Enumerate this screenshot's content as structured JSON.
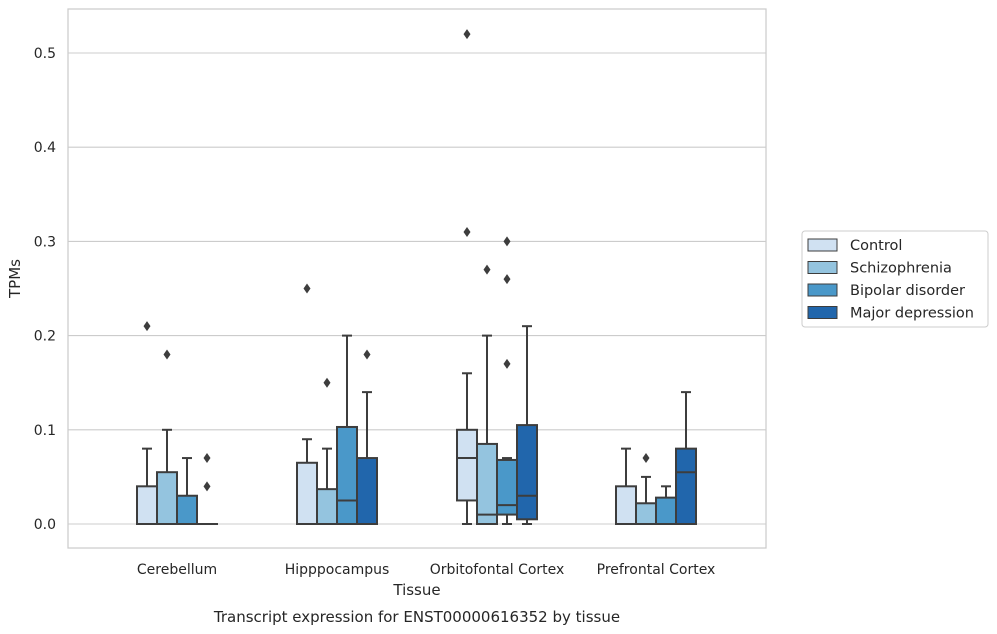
{
  "chart_data": {
    "type": "boxplot",
    "caption": "Transcript expression for ENST00000616352 by tissue",
    "xlabel": "Tissue",
    "ylabel": "TPMs",
    "ylim": [
      -0.025,
      0.545
    ],
    "yticks": [
      "0.0",
      "0.1",
      "0.2",
      "0.3",
      "0.4",
      "0.5"
    ],
    "ytick_values": [
      0.0,
      0.1,
      0.2,
      0.3,
      0.4,
      0.5
    ],
    "grid": true,
    "legend_position": "right",
    "categories": [
      "Cerebellum",
      "Hipppocampus",
      "Orbitofontal Cortex",
      "Prefrontal Cortex"
    ],
    "series": [
      {
        "name": "Control",
        "color": "#d0e1f2",
        "boxes": [
          {
            "min": 0.0,
            "q1": 0.0,
            "median": 0.0,
            "q3": 0.04,
            "max": 0.08,
            "outliers": [
              0.21
            ]
          },
          {
            "min": 0.0,
            "q1": 0.0,
            "median": 0.0,
            "q3": 0.065,
            "max": 0.09,
            "outliers": [
              0.25
            ]
          },
          {
            "min": 0.0,
            "q1": 0.025,
            "median": 0.07,
            "q3": 0.1,
            "max": 0.16,
            "outliers": [
              0.31,
              0.52
            ]
          },
          {
            "min": 0.0,
            "q1": 0.0,
            "median": 0.0,
            "q3": 0.04,
            "max": 0.08,
            "outliers": []
          }
        ]
      },
      {
        "name": "Schizophrenia",
        "color": "#94c4df",
        "boxes": [
          {
            "min": 0.0,
            "q1": 0.0,
            "median": 0.0,
            "q3": 0.055,
            "max": 0.1,
            "outliers": [
              0.18
            ]
          },
          {
            "min": 0.0,
            "q1": 0.0,
            "median": 0.0,
            "q3": 0.037,
            "max": 0.08,
            "outliers": [
              0.15
            ]
          },
          {
            "min": 0.0,
            "q1": 0.0,
            "median": 0.01,
            "q3": 0.085,
            "max": 0.2,
            "outliers": [
              0.27
            ]
          },
          {
            "min": 0.0,
            "q1": 0.0,
            "median": 0.0,
            "q3": 0.022,
            "max": 0.05,
            "outliers": [
              0.07
            ]
          }
        ]
      },
      {
        "name": "Bipolar disorder",
        "color": "#4a98c9",
        "boxes": [
          {
            "min": 0.0,
            "q1": 0.0,
            "median": 0.0,
            "q3": 0.03,
            "max": 0.07,
            "outliers": []
          },
          {
            "min": 0.0,
            "q1": 0.0,
            "median": 0.025,
            "q3": 0.103,
            "max": 0.2,
            "outliers": []
          },
          {
            "min": 0.0,
            "q1": 0.01,
            "median": 0.02,
            "q3": 0.068,
            "max": 0.07,
            "outliers": [
              0.17,
              0.26,
              0.3
            ]
          },
          {
            "min": 0.0,
            "q1": 0.0,
            "median": 0.0,
            "q3": 0.028,
            "max": 0.04,
            "outliers": []
          }
        ]
      },
      {
        "name": "Major depression",
        "color": "#2166ac",
        "boxes": [
          {
            "min": 0.0,
            "q1": 0.0,
            "median": 0.0,
            "q3": 0.0,
            "max": 0.0,
            "outliers": [
              0.04,
              0.07
            ]
          },
          {
            "min": 0.0,
            "q1": 0.0,
            "median": 0.0,
            "q3": 0.07,
            "max": 0.14,
            "outliers": [
              0.18
            ]
          },
          {
            "min": 0.0,
            "q1": 0.005,
            "median": 0.03,
            "q3": 0.105,
            "max": 0.21,
            "outliers": []
          },
          {
            "min": 0.0,
            "q1": 0.0,
            "median": 0.055,
            "q3": 0.08,
            "max": 0.14,
            "outliers": []
          }
        ]
      }
    ]
  }
}
